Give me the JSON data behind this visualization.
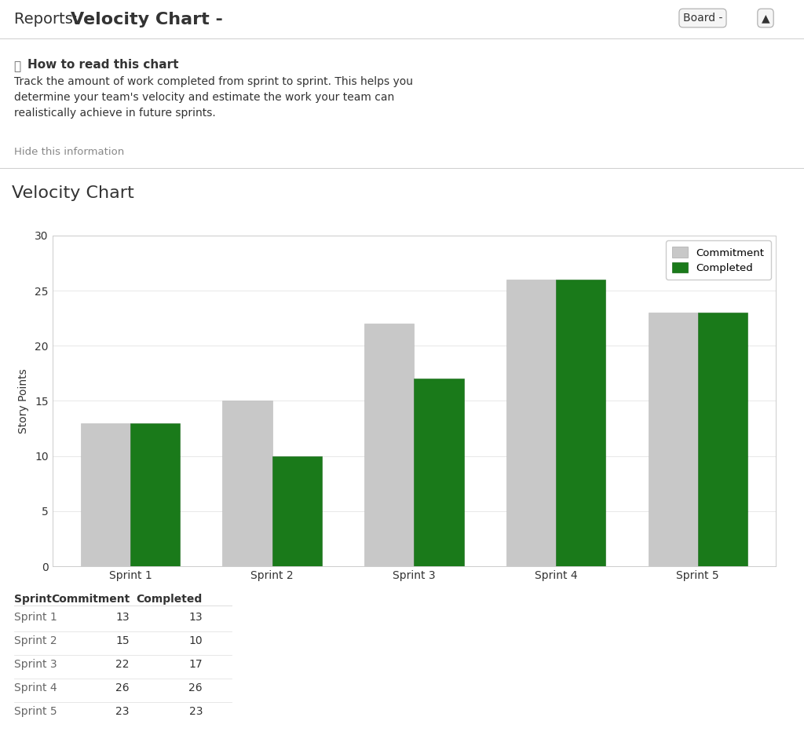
{
  "title_header_reports": "Reports:  ",
  "title_header_chart": "Velocity Chart -",
  "chart_title": "Velocity Chart",
  "how_to_read_title": "How to read this chart",
  "how_to_read_text": "Track the amount of work completed from sprint to sprint. This helps you\ndetermine your team's velocity and estimate the work your team can\nrealistically achieve in future sprints.",
  "hide_text": "Hide this information",
  "sprints": [
    "Sprint 1",
    "Sprint 2",
    "Sprint 3",
    "Sprint 4",
    "Sprint 5"
  ],
  "commitment": [
    13,
    15,
    22,
    26,
    23
  ],
  "completed": [
    13,
    10,
    17,
    26,
    23
  ],
  "ylabel": "Story Points",
  "ylim": [
    0,
    30
  ],
  "yticks": [
    0,
    5,
    10,
    15,
    20,
    25,
    30
  ],
  "commitment_color": "#c8c8c8",
  "completed_color": "#1a7a1a",
  "background_color": "#ffffff",
  "plot_bg_color": "#ffffff",
  "legend_commitment": "Commitment",
  "legend_completed": "Completed",
  "bar_width": 0.35,
  "table_columns": [
    "Sprint",
    "Commitment",
    "Completed"
  ],
  "table_col_sprint": [
    "Sprint 1",
    "Sprint 2",
    "Sprint 3",
    "Sprint 4",
    "Sprint 5"
  ],
  "table_col_commitment": [
    "13",
    "15",
    "22",
    "26",
    "23"
  ],
  "table_col_completed": [
    "13",
    "10",
    "17",
    "26",
    "23"
  ],
  "grid_color": "#e8e8e8",
  "axis_border_color": "#cccccc",
  "font_color": "#333333",
  "button_text": "Board -",
  "board_button_color": "#f5f5f5",
  "separator_color": "#d0d0d0",
  "table_separator_color": "#dddddd",
  "header_fontsize": 14,
  "chart_title_fontsize": 16,
  "info_title_fontsize": 11,
  "info_text_fontsize": 10,
  "axis_fontsize": 10,
  "table_fontsize": 10
}
